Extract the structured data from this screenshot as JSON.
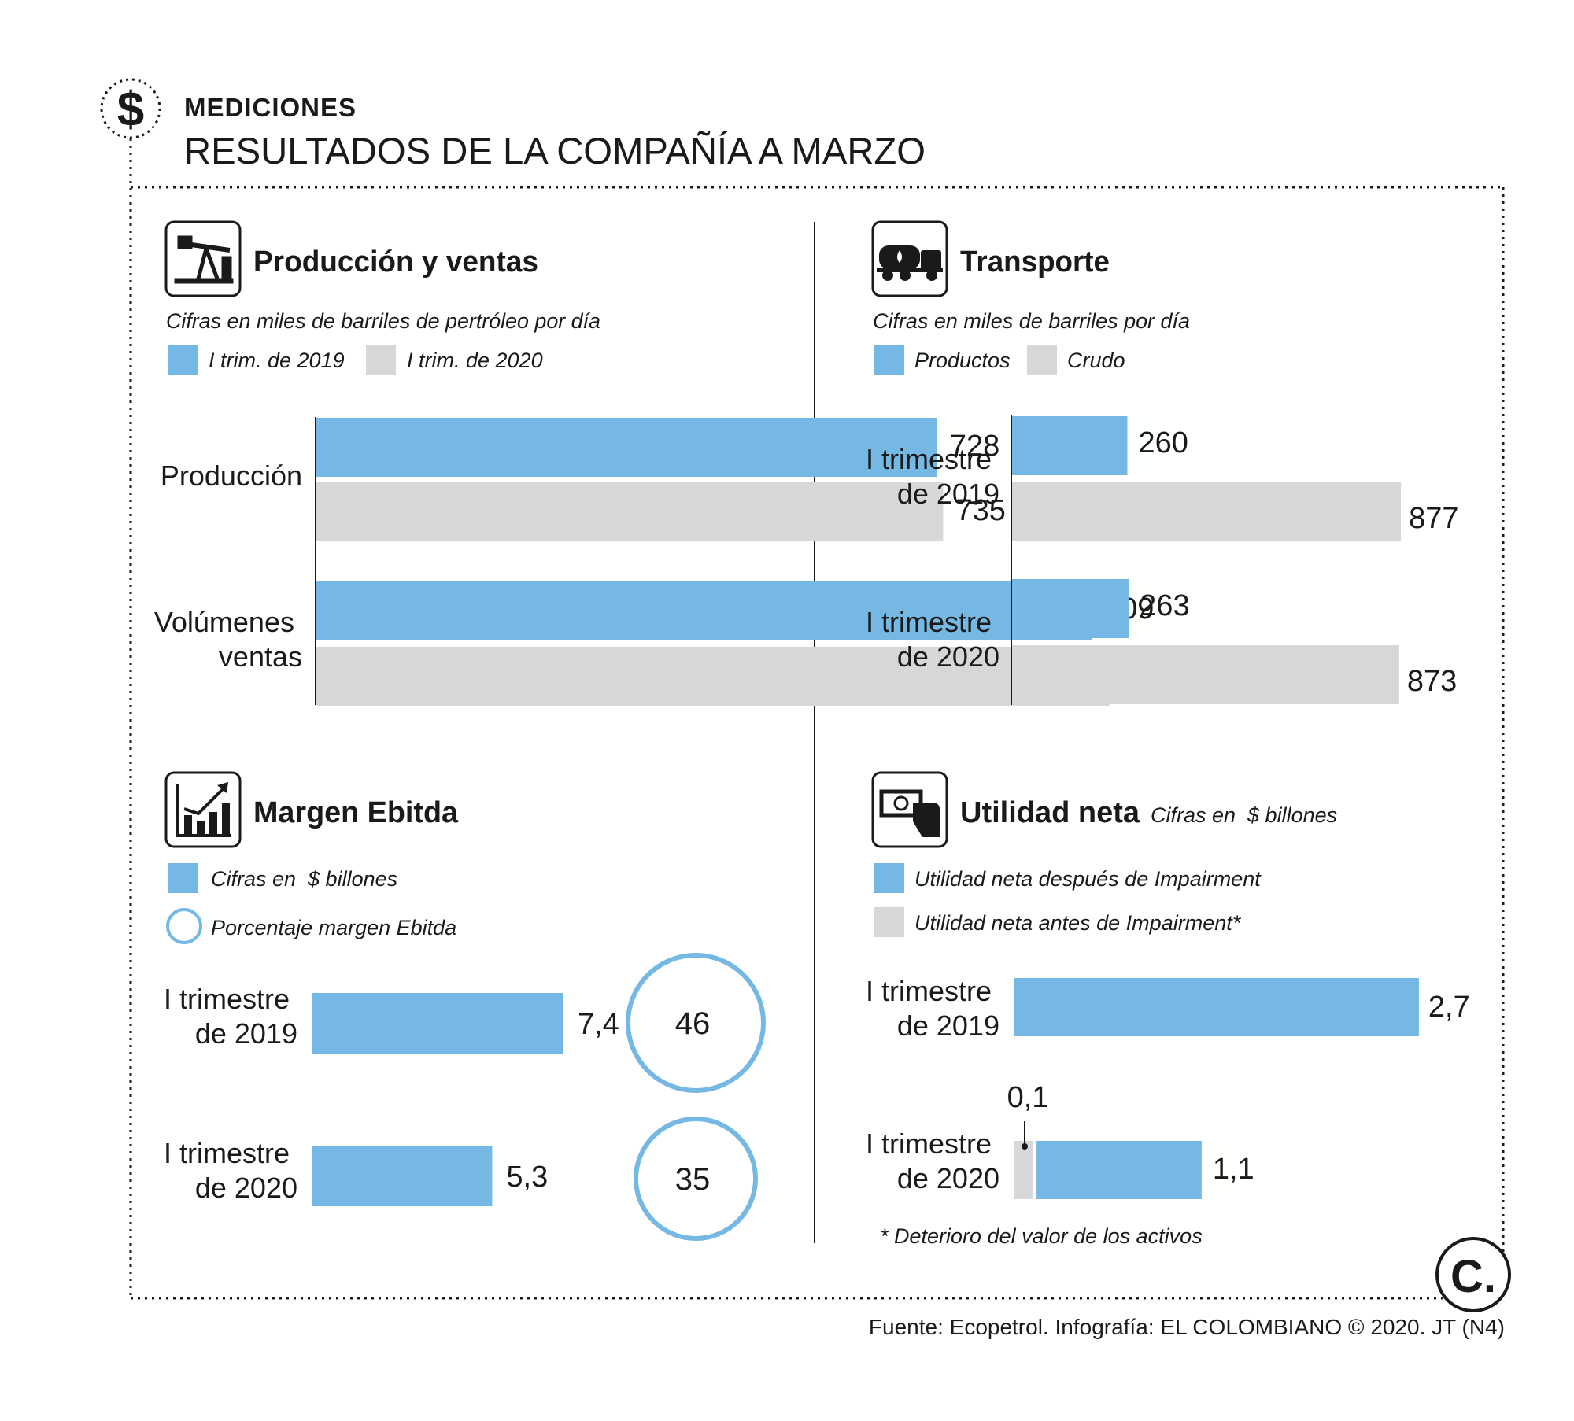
{
  "header": {
    "kicker": "MEDICIONES",
    "title": "RESULTADOS DE LA COMPAÑÍA A MARZO",
    "icon": "dollar-icon"
  },
  "footer": {
    "source": "Fuente: Ecopetrol. Infografía: EL COLOMBIANO © 2020. JT (N4)",
    "logo_letter": "C."
  },
  "colors": {
    "blue": "#74b8e3",
    "gray": "#d6d7d9",
    "ink": "#1a1a1a"
  },
  "chart_data": [
    {
      "id": "produccion",
      "type": "bar",
      "orientation": "horizontal",
      "title": "Producción y ventas",
      "icon": "oil-pump-icon",
      "subtitle": "Cifras en miles de barriles de pertróleo por día",
      "legend": [
        "I trim. de 2019",
        "I trim. de 2020"
      ],
      "categories": [
        "Producción",
        "Volúmenes ventas"
      ],
      "series": [
        {
          "name": "I trim. de 2019",
          "values": [
            728,
            909
          ]
        },
        {
          "name": "I trim. de 2020",
          "values": [
            735,
            930
          ]
        }
      ],
      "value_labels": [
        [
          "728",
          "909"
        ],
        [
          "735",
          "930"
        ]
      ]
    },
    {
      "id": "transporte",
      "type": "bar",
      "orientation": "horizontal",
      "title": "Transporte",
      "icon": "tanker-truck-icon",
      "subtitle": "Cifras en miles de barriles por día",
      "legend": [
        "Productos",
        "Crudo"
      ],
      "categories": [
        "I trimestre de 2019",
        "I trimestre de 2020"
      ],
      "series": [
        {
          "name": "Productos",
          "values": [
            260,
            263
          ]
        },
        {
          "name": "Crudo",
          "values": [
            877,
            873
          ]
        }
      ],
      "value_labels": [
        [
          "260",
          "263"
        ],
        [
          "877",
          "873"
        ]
      ]
    },
    {
      "id": "ebitda",
      "type": "bar",
      "orientation": "horizontal",
      "title": "Margen Ebitda",
      "icon": "growth-chart-icon",
      "legend": [
        "Cifras en  $ billones",
        "Porcentaje margen Ebitda"
      ],
      "categories": [
        "I trimestre de 2019",
        "I trimestre de 2020"
      ],
      "series": [
        {
          "name": "Cifras en  $ billones",
          "values": [
            7.4,
            5.3
          ]
        },
        {
          "name": "Porcentaje margen Ebitda",
          "values": [
            46,
            35
          ]
        }
      ],
      "value_labels": [
        [
          "7,4",
          "5,3"
        ],
        [
          "46",
          "35"
        ]
      ]
    },
    {
      "id": "utilidad",
      "type": "bar",
      "orientation": "horizontal",
      "title": "Utilidad neta",
      "icon": "money-hand-icon",
      "subtitle": "Cifras en  $ billones",
      "legend": [
        "Utilidad neta después de Impairment",
        "Utilidad neta antes de Impairment*"
      ],
      "categories": [
        "I trimestre de 2019",
        "I trimestre de 2020"
      ],
      "series": [
        {
          "name": "Utilidad neta después de Impairment",
          "values": [
            2.7,
            1.1
          ]
        },
        {
          "name": "Utilidad neta antes de Impairment*",
          "values": [
            null,
            0.1
          ]
        }
      ],
      "value_labels": [
        [
          "2,7",
          "1,1"
        ],
        [
          "",
          "0,1"
        ]
      ],
      "footnote": "* Deterioro del valor de los activos"
    }
  ]
}
